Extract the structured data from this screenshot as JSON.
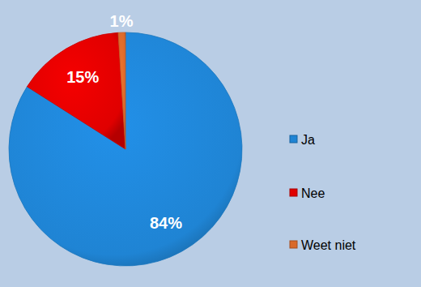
{
  "chart_data": {
    "type": "pie",
    "categories": [
      "Ja",
      "Nee",
      "Weet niet"
    ],
    "values": [
      84,
      15,
      1
    ],
    "value_labels": [
      "84%",
      "15%",
      "1%"
    ],
    "colors": [
      "#1f84d4",
      "#e00000",
      "#d9692a"
    ],
    "data_labels": true,
    "legend": "right"
  }
}
